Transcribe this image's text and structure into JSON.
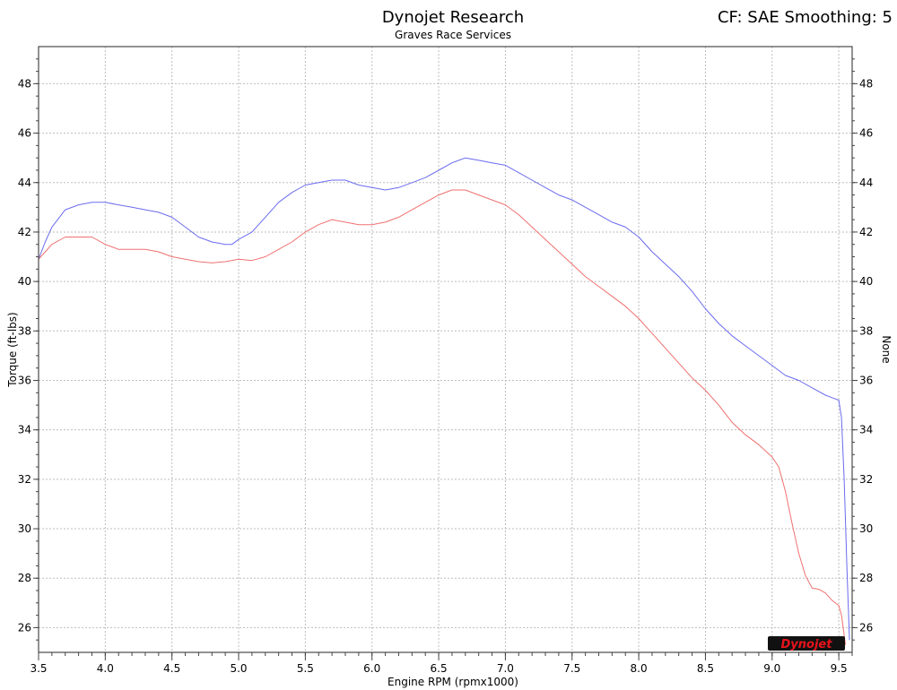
{
  "header": {
    "title": "Dynojet Research",
    "subtitle": "Graves Race Services",
    "cf_text": "CF: SAE Smoothing: 5"
  },
  "logo": {
    "text": "Dynojet",
    "color": "#e8131b"
  },
  "chart_data": {
    "type": "line",
    "title": "Dynojet Research",
    "subtitle": "Graves Race Services",
    "xlabel": "Engine RPM (rpmx1000)",
    "ylabel": "Torque (ft-lbs)",
    "ylabel_right": "None",
    "xlim": [
      3.5,
      9.6
    ],
    "ylim": [
      25,
      49.5
    ],
    "x_ticks": [
      "3.5",
      "4.0",
      "4.5",
      "5.0",
      "5.5",
      "6.0",
      "6.5",
      "7.0",
      "7.5",
      "8.0",
      "8.5",
      "9.0",
      "9.5"
    ],
    "y_ticks": [
      "26",
      "28",
      "30",
      "32",
      "34",
      "36",
      "38",
      "40",
      "42",
      "44",
      "46",
      "48"
    ],
    "grid": true,
    "series": [
      {
        "color": "#6b6bf0",
        "points": [
          [
            3.5,
            40.9
          ],
          [
            3.55,
            41.6
          ],
          [
            3.6,
            42.2
          ],
          [
            3.7,
            42.9
          ],
          [
            3.8,
            43.1
          ],
          [
            3.9,
            43.2
          ],
          [
            4.0,
            43.2
          ],
          [
            4.1,
            43.1
          ],
          [
            4.2,
            43.0
          ],
          [
            4.3,
            42.9
          ],
          [
            4.4,
            42.8
          ],
          [
            4.5,
            42.6
          ],
          [
            4.6,
            42.2
          ],
          [
            4.7,
            41.8
          ],
          [
            4.8,
            41.6
          ],
          [
            4.9,
            41.5
          ],
          [
            4.95,
            41.5
          ],
          [
            5.0,
            41.7
          ],
          [
            5.1,
            42.0
          ],
          [
            5.2,
            42.6
          ],
          [
            5.3,
            43.2
          ],
          [
            5.4,
            43.6
          ],
          [
            5.5,
            43.9
          ],
          [
            5.6,
            44.0
          ],
          [
            5.7,
            44.1
          ],
          [
            5.8,
            44.1
          ],
          [
            5.9,
            43.9
          ],
          [
            6.0,
            43.8
          ],
          [
            6.1,
            43.7
          ],
          [
            6.2,
            43.8
          ],
          [
            6.3,
            44.0
          ],
          [
            6.4,
            44.2
          ],
          [
            6.5,
            44.5
          ],
          [
            6.6,
            44.8
          ],
          [
            6.7,
            45.0
          ],
          [
            6.8,
            44.9
          ],
          [
            6.9,
            44.8
          ],
          [
            7.0,
            44.7
          ],
          [
            7.1,
            44.4
          ],
          [
            7.2,
            44.1
          ],
          [
            7.3,
            43.8
          ],
          [
            7.4,
            43.5
          ],
          [
            7.5,
            43.3
          ],
          [
            7.6,
            43.0
          ],
          [
            7.7,
            42.7
          ],
          [
            7.8,
            42.4
          ],
          [
            7.9,
            42.2
          ],
          [
            8.0,
            41.8
          ],
          [
            8.1,
            41.2
          ],
          [
            8.2,
            40.7
          ],
          [
            8.3,
            40.2
          ],
          [
            8.4,
            39.6
          ],
          [
            8.5,
            38.9
          ],
          [
            8.6,
            38.3
          ],
          [
            8.7,
            37.8
          ],
          [
            8.8,
            37.4
          ],
          [
            8.9,
            37.0
          ],
          [
            9.0,
            36.6
          ],
          [
            9.1,
            36.2
          ],
          [
            9.2,
            36.0
          ],
          [
            9.3,
            35.7
          ],
          [
            9.4,
            35.4
          ],
          [
            9.45,
            35.3
          ],
          [
            9.5,
            35.2
          ],
          [
            9.52,
            34.5
          ],
          [
            9.54,
            32.0
          ],
          [
            9.56,
            28.5
          ],
          [
            9.58,
            25.5
          ]
        ]
      },
      {
        "color": "#f07070",
        "points": [
          [
            3.5,
            40.9
          ],
          [
            3.55,
            41.2
          ],
          [
            3.6,
            41.5
          ],
          [
            3.7,
            41.8
          ],
          [
            3.8,
            41.8
          ],
          [
            3.9,
            41.8
          ],
          [
            4.0,
            41.5
          ],
          [
            4.1,
            41.3
          ],
          [
            4.2,
            41.3
          ],
          [
            4.3,
            41.3
          ],
          [
            4.4,
            41.2
          ],
          [
            4.5,
            41.0
          ],
          [
            4.6,
            40.9
          ],
          [
            4.7,
            40.8
          ],
          [
            4.8,
            40.75
          ],
          [
            4.9,
            40.8
          ],
          [
            5.0,
            40.9
          ],
          [
            5.1,
            40.85
          ],
          [
            5.2,
            41.0
          ],
          [
            5.3,
            41.3
          ],
          [
            5.4,
            41.6
          ],
          [
            5.5,
            42.0
          ],
          [
            5.6,
            42.3
          ],
          [
            5.7,
            42.5
          ],
          [
            5.8,
            42.4
          ],
          [
            5.9,
            42.3
          ],
          [
            6.0,
            42.3
          ],
          [
            6.1,
            42.4
          ],
          [
            6.2,
            42.6
          ],
          [
            6.3,
            42.9
          ],
          [
            6.4,
            43.2
          ],
          [
            6.5,
            43.5
          ],
          [
            6.6,
            43.7
          ],
          [
            6.7,
            43.7
          ],
          [
            6.8,
            43.5
          ],
          [
            6.9,
            43.3
          ],
          [
            7.0,
            43.1
          ],
          [
            7.1,
            42.7
          ],
          [
            7.2,
            42.2
          ],
          [
            7.3,
            41.7
          ],
          [
            7.4,
            41.2
          ],
          [
            7.5,
            40.7
          ],
          [
            7.6,
            40.2
          ],
          [
            7.7,
            39.8
          ],
          [
            7.8,
            39.4
          ],
          [
            7.9,
            39.0
          ],
          [
            8.0,
            38.5
          ],
          [
            8.1,
            37.9
          ],
          [
            8.2,
            37.3
          ],
          [
            8.3,
            36.7
          ],
          [
            8.4,
            36.1
          ],
          [
            8.5,
            35.6
          ],
          [
            8.6,
            35.0
          ],
          [
            8.7,
            34.3
          ],
          [
            8.8,
            33.8
          ],
          [
            8.9,
            33.4
          ],
          [
            9.0,
            32.9
          ],
          [
            9.05,
            32.5
          ],
          [
            9.1,
            31.5
          ],
          [
            9.15,
            30.2
          ],
          [
            9.2,
            29.0
          ],
          [
            9.25,
            28.1
          ],
          [
            9.3,
            27.6
          ],
          [
            9.35,
            27.55
          ],
          [
            9.4,
            27.4
          ],
          [
            9.45,
            27.1
          ],
          [
            9.5,
            26.9
          ],
          [
            9.52,
            26.5
          ],
          [
            9.55,
            25.3
          ]
        ]
      }
    ]
  }
}
